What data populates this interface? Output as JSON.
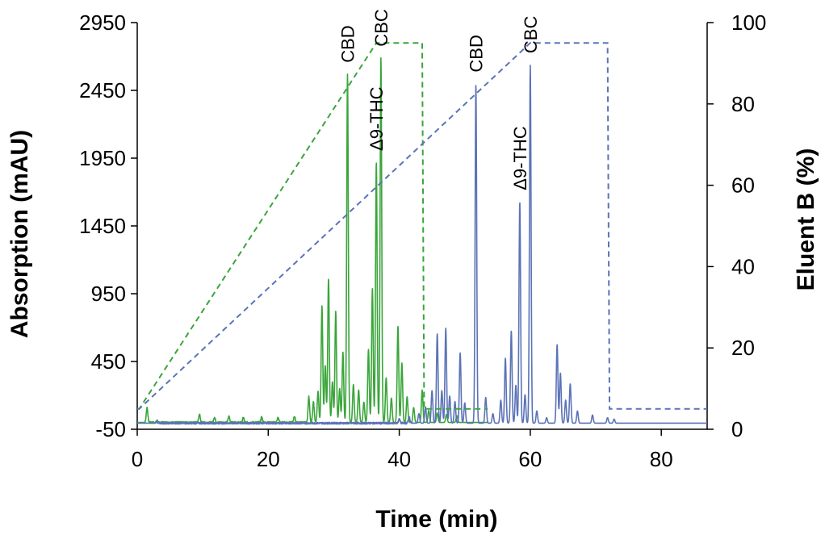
{
  "chart_data": {
    "type": "line",
    "xlabel": "Time (min)",
    "ylabel": "Absorption (mAU)",
    "y2label": "Eluent B (%)",
    "xlim": [
      0,
      87
    ],
    "ylim": [
      -50,
      2950
    ],
    "y2lim": [
      0,
      100
    ],
    "x_ticks": [
      "0",
      "20",
      "40",
      "60",
      "80"
    ],
    "y_ticks": [
      "-50",
      "450",
      "950",
      "1450",
      "1950",
      "2450",
      "2950"
    ],
    "y2_ticks": [
      "0",
      "20",
      "40",
      "60",
      "80",
      "100"
    ],
    "grid": false,
    "legend": "none",
    "series": [
      {
        "axis": "left",
        "color": "#3aa53a",
        "style": "solid",
        "baseline": 0,
        "noise_range": [
          1,
          27
        ],
        "end_x": 53.5,
        "peaks": [
          {
            "x": 1.5,
            "y": 110
          },
          {
            "x": 9.5,
            "y": 60
          },
          {
            "x": 11.8,
            "y": 40
          },
          {
            "x": 14.0,
            "y": 45
          },
          {
            "x": 16.2,
            "y": 35
          },
          {
            "x": 19.0,
            "y": 40
          },
          {
            "x": 21.5,
            "y": 35
          },
          {
            "x": 24.0,
            "y": 45
          },
          {
            "x": 26.2,
            "y": 190
          },
          {
            "x": 26.9,
            "y": 150
          },
          {
            "x": 27.6,
            "y": 230
          },
          {
            "x": 28.2,
            "y": 860
          },
          {
            "x": 28.7,
            "y": 420
          },
          {
            "x": 29.2,
            "y": 1060
          },
          {
            "x": 29.8,
            "y": 300
          },
          {
            "x": 30.3,
            "y": 820
          },
          {
            "x": 30.9,
            "y": 250
          },
          {
            "x": 31.4,
            "y": 520
          },
          {
            "x": 32.1,
            "y": 2570
          },
          {
            "x": 33.0,
            "y": 280
          },
          {
            "x": 33.8,
            "y": 240
          },
          {
            "x": 34.6,
            "y": 150
          },
          {
            "x": 35.3,
            "y": 540
          },
          {
            "x": 35.9,
            "y": 990
          },
          {
            "x": 36.5,
            "y": 1920
          },
          {
            "x": 37.2,
            "y": 2690
          },
          {
            "x": 38.0,
            "y": 330
          },
          {
            "x": 38.8,
            "y": 180
          },
          {
            "x": 39.8,
            "y": 710
          },
          {
            "x": 40.4,
            "y": 440
          },
          {
            "x": 41.2,
            "y": 190
          },
          {
            "x": 42.2,
            "y": 110
          },
          {
            "x": 43.5,
            "y": 240
          },
          {
            "x": 44.5,
            "y": 90
          },
          {
            "x": 45.8,
            "y": 70
          },
          {
            "x": 47.2,
            "y": 60
          },
          {
            "x": 48.8,
            "y": 50
          }
        ]
      },
      {
        "axis": "left",
        "color": "#5b73b6",
        "style": "solid",
        "baseline": -5,
        "noise_range": [
          3,
          42
        ],
        "end_x": 87,
        "peaks": [
          {
            "x": 3.0,
            "y": 20
          },
          {
            "x": 40.0,
            "y": 30
          },
          {
            "x": 41.5,
            "y": 50
          },
          {
            "x": 43.0,
            "y": 70
          },
          {
            "x": 44.0,
            "y": 120
          },
          {
            "x": 45.0,
            "y": 240
          },
          {
            "x": 45.8,
            "y": 660
          },
          {
            "x": 46.5,
            "y": 240
          },
          {
            "x": 47.1,
            "y": 700
          },
          {
            "x": 47.7,
            "y": 200
          },
          {
            "x": 48.5,
            "y": 160
          },
          {
            "x": 49.3,
            "y": 520
          },
          {
            "x": 50.0,
            "y": 150
          },
          {
            "x": 51.7,
            "y": 2500
          },
          {
            "x": 53.2,
            "y": 190
          },
          {
            "x": 54.3,
            "y": 70
          },
          {
            "x": 55.5,
            "y": 170
          },
          {
            "x": 56.2,
            "y": 480
          },
          {
            "x": 57.1,
            "y": 680
          },
          {
            "x": 57.8,
            "y": 280
          },
          {
            "x": 58.4,
            "y": 1630
          },
          {
            "x": 59.2,
            "y": 210
          },
          {
            "x": 60.0,
            "y": 2640
          },
          {
            "x": 61.0,
            "y": 90
          },
          {
            "x": 62.5,
            "y": 40
          },
          {
            "x": 64.1,
            "y": 580
          },
          {
            "x": 64.6,
            "y": 370
          },
          {
            "x": 65.4,
            "y": 170
          },
          {
            "x": 66.1,
            "y": 290
          },
          {
            "x": 67.2,
            "y": 90
          },
          {
            "x": 69.5,
            "y": 60
          },
          {
            "x": 71.8,
            "y": 40
          },
          {
            "x": 72.8,
            "y": 30
          }
        ]
      },
      {
        "axis": "right",
        "color": "#3aa53a",
        "style": "dashed",
        "x": [
          0,
          0.3,
          36.5,
          43.5,
          43.8,
          53.5
        ],
        "y": [
          5,
          5,
          95,
          95,
          5,
          5
        ]
      },
      {
        "axis": "right",
        "color": "#5b73b6",
        "style": "dashed",
        "x": [
          0,
          0.3,
          60.0,
          71.8,
          72.1,
          87
        ],
        "y": [
          5,
          5,
          95,
          95,
          5,
          5
        ]
      }
    ],
    "annotations": [
      {
        "text": "CBD",
        "x": 32.1,
        "series": 0,
        "peak_y": 2570,
        "rotate": true
      },
      {
        "text": "Δ9-THC",
        "x": 36.5,
        "series": 0,
        "peak_y": 1920,
        "rotate": true
      },
      {
        "text": "CBC",
        "x": 37.2,
        "series": 0,
        "peak_y": 2690,
        "rotate": true
      },
      {
        "text": "CBD",
        "x": 51.7,
        "series": 1,
        "peak_y": 2500,
        "rotate": true
      },
      {
        "text": "Δ9-THC",
        "x": 58.4,
        "series": 1,
        "peak_y": 1630,
        "rotate": true
      },
      {
        "text": "CBC",
        "x": 60.0,
        "series": 1,
        "peak_y": 2640,
        "rotate": true
      }
    ]
  }
}
